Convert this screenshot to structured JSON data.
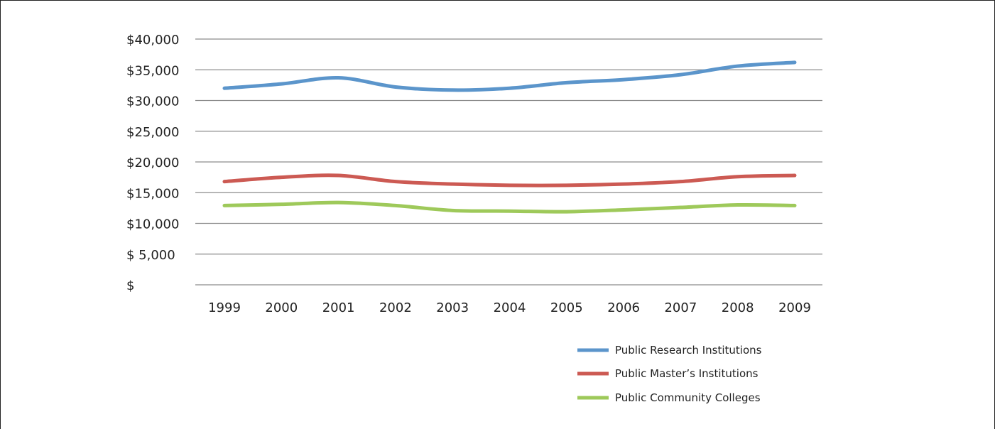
{
  "chart_data": {
    "type": "line",
    "title": "",
    "xlabel": "",
    "ylabel": "",
    "x": [
      "1999",
      "2000",
      "2001",
      "2002",
      "2003",
      "2004",
      "2005",
      "2006",
      "2007",
      "2008",
      "2009"
    ],
    "ylim": [
      0,
      40000
    ],
    "yticks": [
      0,
      5000,
      10000,
      15000,
      20000,
      25000,
      30000,
      35000,
      40000
    ],
    "ytick_labels": [
      "$",
      "$   5,000",
      "$10,000",
      "$15,000",
      "$20,000",
      "$25,000",
      "$30,000",
      "$35,000",
      "$40,000"
    ],
    "grid": true,
    "legend_position": "bottom-right",
    "series": [
      {
        "name": "Public Research Institutions",
        "color": "#5b95cb",
        "values": [
          32000,
          32700,
          33700,
          32200,
          31700,
          32000,
          32900,
          33400,
          34200,
          35600,
          36200
        ]
      },
      {
        "name": "Public Master’s Institutions",
        "color": "#cc5a53",
        "values": [
          16800,
          17500,
          17800,
          16800,
          16400,
          16200,
          16200,
          16400,
          16800,
          17600,
          17800
        ]
      },
      {
        "name": "Public Community Colleges",
        "color": "#9ec95a",
        "values": [
          12900,
          13100,
          13400,
          12900,
          12100,
          12000,
          11900,
          12200,
          12600,
          13000,
          12900
        ]
      }
    ]
  }
}
